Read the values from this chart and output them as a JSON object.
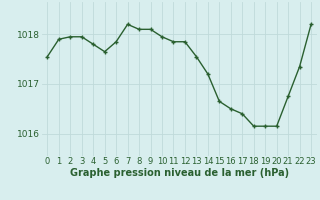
{
  "x": [
    0,
    1,
    2,
    3,
    4,
    5,
    6,
    7,
    8,
    9,
    10,
    11,
    12,
    13,
    14,
    15,
    16,
    17,
    18,
    19,
    20,
    21,
    22,
    23
  ],
  "y": [
    1017.55,
    1017.9,
    1017.95,
    1017.95,
    1017.8,
    1017.65,
    1017.85,
    1018.2,
    1018.1,
    1018.1,
    1017.95,
    1017.85,
    1017.85,
    1017.55,
    1017.2,
    1016.65,
    1016.5,
    1016.4,
    1016.15,
    1016.15,
    1016.15,
    1016.75,
    1017.35,
    1018.2
  ],
  "line_color": "#2a6030",
  "marker": "+",
  "marker_size": 3.5,
  "linewidth": 1.0,
  "bg_color": "#d8eeee",
  "grid_color": "#c0dada",
  "xlabel": "Graphe pression niveau de la mer (hPa)",
  "xlabel_color": "#2a6030",
  "xlabel_fontsize": 7.0,
  "tick_color": "#2a6030",
  "tick_fontsize": 6.0,
  "ytick_fontsize": 6.5,
  "yticks": [
    1016,
    1017,
    1018
  ],
  "ylim": [
    1015.55,
    1018.65
  ],
  "xlim": [
    -0.5,
    23.5
  ]
}
